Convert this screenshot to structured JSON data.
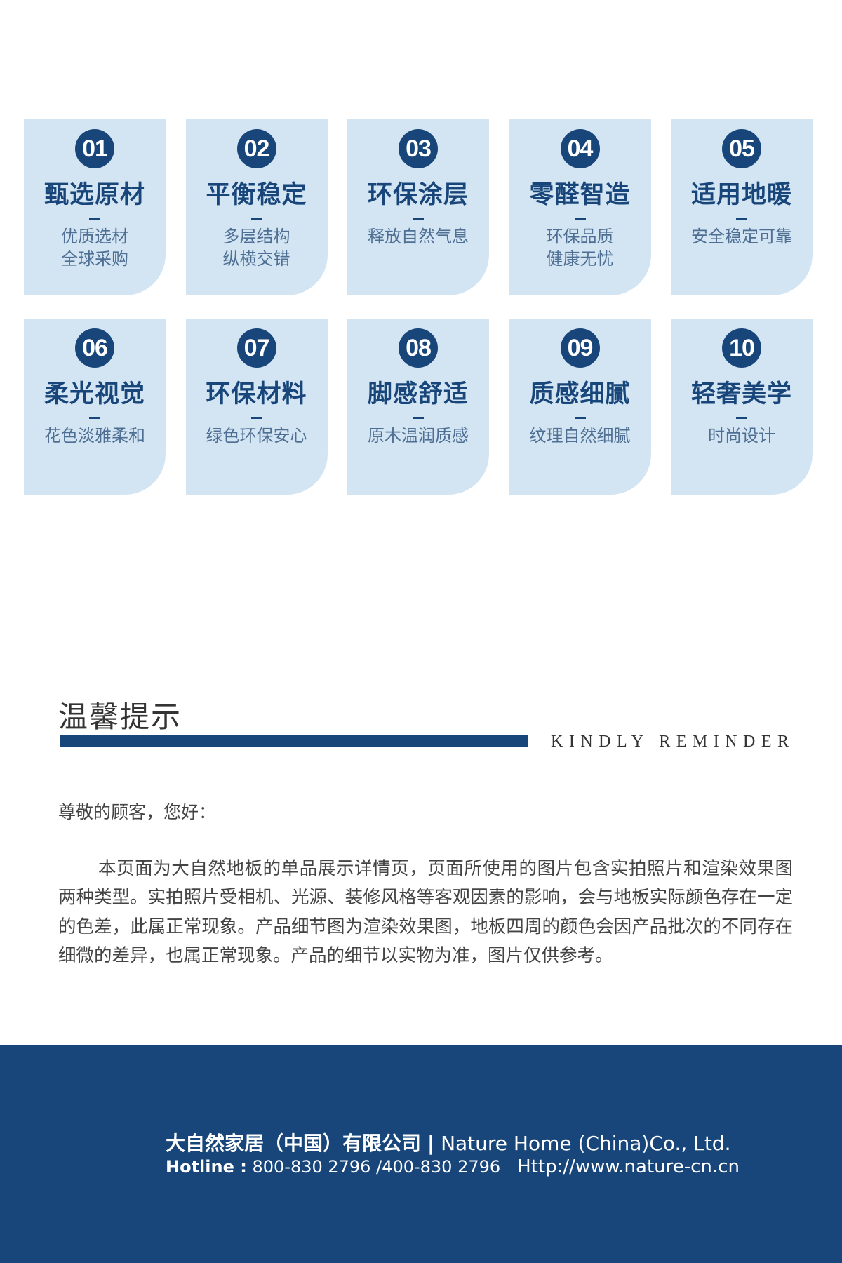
{
  "features": [
    {
      "num": "01",
      "title": "甄选原材",
      "lines": [
        "优质选材",
        "全球采购"
      ]
    },
    {
      "num": "02",
      "title": "平衡稳定",
      "lines": [
        "多层结构",
        "纵横交错"
      ]
    },
    {
      "num": "03",
      "title": "环保涂层",
      "lines": [
        "释放自然气息"
      ]
    },
    {
      "num": "04",
      "title": "零醛智造",
      "lines": [
        "环保品质",
        "健康无忧"
      ]
    },
    {
      "num": "05",
      "title": "适用地暖",
      "lines": [
        "安全稳定可靠"
      ]
    },
    {
      "num": "06",
      "title": "柔光视觉",
      "lines": [
        "花色淡雅柔和"
      ]
    },
    {
      "num": "07",
      "title": "环保材料",
      "lines": [
        "绿色环保安心"
      ]
    },
    {
      "num": "08",
      "title": "脚感舒适",
      "lines": [
        "原木温润质感"
      ]
    },
    {
      "num": "09",
      "title": "质感细腻",
      "lines": [
        "纹理自然细腻"
      ]
    },
    {
      "num": "10",
      "title": "轻奢美学",
      "lines": [
        "时尚设计"
      ]
    }
  ],
  "reminder": {
    "title": "温馨提示",
    "subtitle": "KINDLY REMINDER",
    "greeting": "尊敬的顾客，您好：",
    "body": "本页面为大自然地板的单品展示详情页，页面所使用的图片包含实拍照片和渲染效果图两种类型。实拍照片受相机、光源、装修风格等客观因素的影响，会与地板实际颜色存在一定的色差，此属正常现象。产品细节图为渲染效果图，地板四周的颜色会因产品批次的不同存在细微的差异，也属正常现象。产品的细节以实物为准，图片仅供参考。"
  },
  "footer": {
    "company_cn": "大自然家居（中国）有限公司",
    "separator": "|",
    "company_en": "Nature Home (China)Co., Ltd.",
    "hotline_label": "Hotline :",
    "hotline": "800-830 2796 /400-830 2796",
    "url": "Http://www.nature-cn.cn"
  },
  "colors": {
    "brand": "#18467a",
    "card": "#d3e5f3"
  }
}
